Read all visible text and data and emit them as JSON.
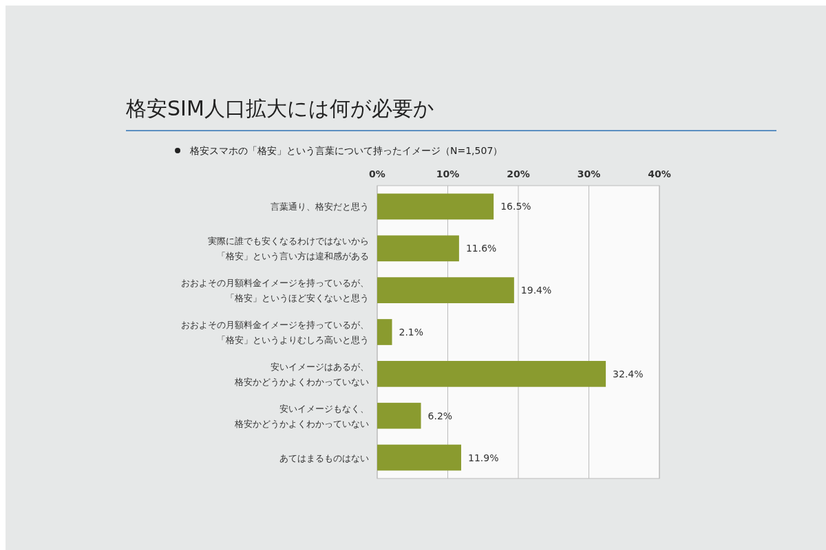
{
  "chart_data": {
    "type": "bar",
    "orientation": "horizontal",
    "title": "格安SIM人口拡大には何が必要か",
    "subtitle": "格安スマホの「格安」という言葉について持ったイメージ（N=1,507）",
    "categories": [
      "言葉通り、格安だと思う",
      "実際に誰でも安くなるわけではないから「格安」という言い方は違和感がある",
      "おおよその月額料金イメージを持っているが、「格安」というほど安くないと思う",
      "おおよその月額料金イメージを持っているが、「格安」というよりむしろ高いと思う",
      "安いイメージはあるが、格安かどうかよくわかっていない",
      "安いイメージもなく、格安かどうかよくわかっていない",
      "あてはまるものはない"
    ],
    "values": [
      16.5,
      11.6,
      19.4,
      2.1,
      32.4,
      6.2,
      11.9
    ],
    "value_labels": [
      "16.5%",
      "11.6%",
      "19.4%",
      "2.1%",
      "32.4%",
      "6.2%",
      "11.9%"
    ],
    "color": "#8a9b2f",
    "xlim": [
      0,
      40
    ],
    "xticks": [
      {
        "value": 0,
        "label": "0%"
      },
      {
        "value": 10,
        "label": "10%"
      },
      {
        "value": 20,
        "label": "20%"
      },
      {
        "value": 30,
        "label": "30%"
      },
      {
        "value": 40,
        "label": "40%"
      }
    ],
    "grid": "x"
  }
}
